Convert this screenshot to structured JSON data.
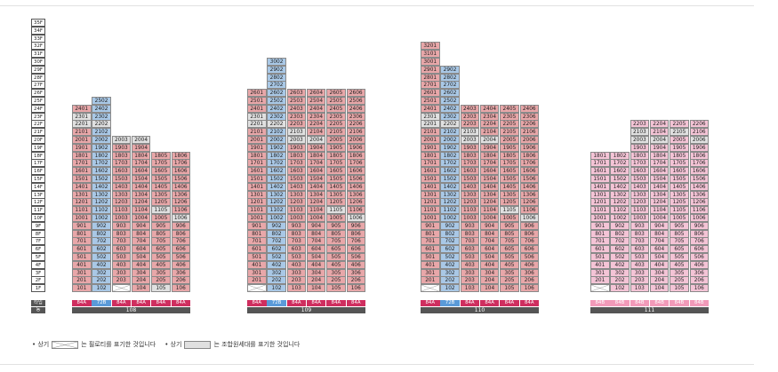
{
  "floors": [
    "35F",
    "34F",
    "33F",
    "32F",
    "31F",
    "30F",
    "29F",
    "28F",
    "27F",
    "26F",
    "25F",
    "24F",
    "23F",
    "22F",
    "21F",
    "20F",
    "19F",
    "18F",
    "17F",
    "16F",
    "15F",
    "14F",
    "13F",
    "12F",
    "11F",
    "10F",
    "9F",
    "8F",
    "7F",
    "6F",
    "5F",
    "4F",
    "3F",
    "2F",
    "1F"
  ],
  "type_label": "타입",
  "dong_label": "동",
  "colors": {
    "red": "#e8a7a9",
    "blue": "#a9c8e6",
    "gray": "#e0e0e0",
    "pink": "#f4c4d6",
    "type_crimson": "#cf2e5f",
    "type_blue": "#5a9ad8",
    "type_pink": "#f29ab9",
    "dark": "#555555"
  },
  "buildings": [
    {
      "dong": "108",
      "columns": [
        {
          "type": "84A",
          "top": 24,
          "grays": [
            23,
            22
          ],
          "piloti_first": false,
          "first_gray": false
        },
        {
          "type": "72B",
          "top": 25,
          "grays": [
            22
          ],
          "piloti_first": false,
          "first_gray": false
        },
        {
          "type": "84A",
          "top": 20,
          "grays": [
            20,
            21
          ],
          "piloti_first": true,
          "first_gray": false
        },
        {
          "type": "84A",
          "top": 20,
          "grays": [
            20
          ],
          "piloti_first": false,
          "first_gray": false
        },
        {
          "type": "84A",
          "top": 18,
          "grays": [
            11
          ],
          "piloti_first": false,
          "first_gray": true
        },
        {
          "type": "84A",
          "top": 18,
          "grays": [
            10
          ],
          "piloti_first": false,
          "first_gray": false
        }
      ]
    },
    {
      "dong": "109",
      "columns": [
        {
          "type": "84A",
          "top": 26,
          "grays": [
            23,
            22
          ],
          "piloti_first": true,
          "first_gray": false
        },
        {
          "type": "72B",
          "top": 30,
          "grays": [
            22
          ],
          "piloti_first": false,
          "first_gray": false
        },
        {
          "type": "84A",
          "top": 26,
          "grays": [
            20,
            21
          ],
          "piloti_first": false,
          "first_gray": false
        },
        {
          "type": "84A",
          "top": 26,
          "grays": [
            20
          ],
          "piloti_first": false,
          "first_gray": false
        },
        {
          "type": "84A",
          "top": 26,
          "grays": [
            11
          ],
          "piloti_first": false,
          "first_gray": false
        },
        {
          "type": "84A",
          "top": 26,
          "grays": [
            10
          ],
          "piloti_first": false,
          "first_gray": false
        }
      ]
    },
    {
      "dong": "110",
      "columns": [
        {
          "type": "84A",
          "top": 32,
          "grays": [
            23,
            22
          ],
          "piloti_first": true,
          "first_gray": false
        },
        {
          "type": "72B",
          "top": 29,
          "grays": [
            22
          ],
          "piloti_first": false,
          "first_gray": false
        },
        {
          "type": "84A",
          "top": 24,
          "grays": [
            20,
            21
          ],
          "piloti_first": false,
          "first_gray": false
        },
        {
          "type": "84A",
          "top": 24,
          "grays": [
            20
          ],
          "piloti_first": false,
          "first_gray": false
        },
        {
          "type": "84A",
          "top": 24,
          "grays": [
            11
          ],
          "piloti_first": false,
          "first_gray": false
        },
        {
          "type": "84A",
          "top": 24,
          "grays": [
            10
          ],
          "piloti_first": false,
          "first_gray": false
        }
      ]
    },
    {
      "dong": "111",
      "columns": [
        {
          "type": "84B",
          "top": 18,
          "grays": [],
          "piloti_first": true,
          "first_gray": false,
          "pink": true
        },
        {
          "type": "84B",
          "top": 18,
          "grays": [],
          "piloti_first": false,
          "first_gray": false,
          "pink": true
        },
        {
          "type": "84B",
          "top": 22,
          "grays": [
            20,
            21
          ],
          "piloti_first": false,
          "first_gray": false,
          "pink": true
        },
        {
          "type": "84B",
          "top": 22,
          "grays": [
            20
          ],
          "piloti_first": false,
          "first_gray": false,
          "pink": true
        },
        {
          "type": "84B",
          "top": 22,
          "grays": [
            21
          ],
          "piloti_first": false,
          "first_gray": false,
          "pink": true
        },
        {
          "type": "84B",
          "top": 22,
          "grays": [
            20
          ],
          "piloti_first": false,
          "first_gray": false,
          "pink": true
        }
      ]
    }
  ],
  "legend": {
    "bullet1": "• 상기",
    "text1": "는 필로티를 표기한 것입니다",
    "bullet2": "• 상기",
    "text2": "는 조합원세대를 표기한 것입니다"
  }
}
